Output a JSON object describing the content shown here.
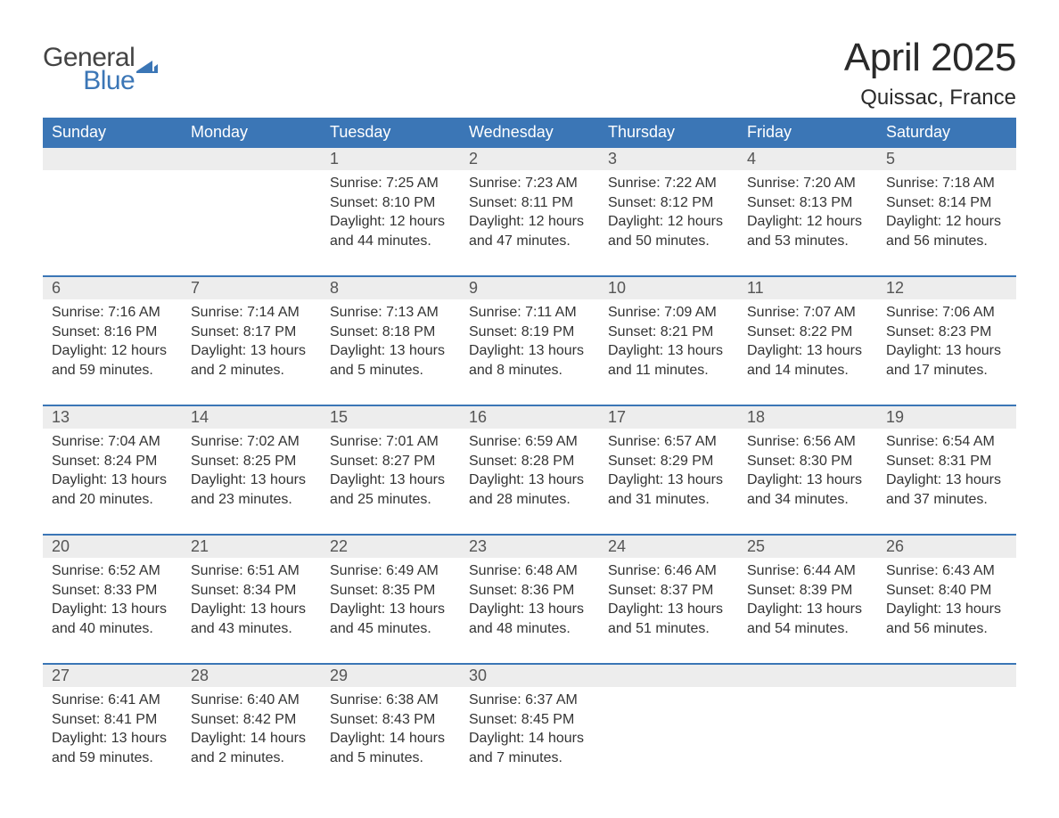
{
  "logo": {
    "general": "General",
    "blue": "Blue",
    "flag_color": "#3b76b6"
  },
  "title": "April 2025",
  "location": "Quissac, France",
  "colors": {
    "header_bg": "#3b76b6",
    "header_text": "#ffffff",
    "daynum_bg": "#ededed",
    "daynum_text": "#555555",
    "body_text": "#333333",
    "week_border": "#3b76b6",
    "page_bg": "#ffffff"
  },
  "fonts": {
    "title_size_pt": 33,
    "location_size_pt": 18,
    "header_size_pt": 14,
    "daynum_size_pt": 14,
    "body_size_pt": 12
  },
  "day_labels": [
    "Sunday",
    "Monday",
    "Tuesday",
    "Wednesday",
    "Thursday",
    "Friday",
    "Saturday"
  ],
  "weeks": [
    {
      "days": [
        {
          "num": "",
          "sunrise": "",
          "sunset": "",
          "daylight": ""
        },
        {
          "num": "",
          "sunrise": "",
          "sunset": "",
          "daylight": ""
        },
        {
          "num": "1",
          "sunrise": "Sunrise: 7:25 AM",
          "sunset": "Sunset: 8:10 PM",
          "daylight": "Daylight: 12 hours and 44 minutes."
        },
        {
          "num": "2",
          "sunrise": "Sunrise: 7:23 AM",
          "sunset": "Sunset: 8:11 PM",
          "daylight": "Daylight: 12 hours and 47 minutes."
        },
        {
          "num": "3",
          "sunrise": "Sunrise: 7:22 AM",
          "sunset": "Sunset: 8:12 PM",
          "daylight": "Daylight: 12 hours and 50 minutes."
        },
        {
          "num": "4",
          "sunrise": "Sunrise: 7:20 AM",
          "sunset": "Sunset: 8:13 PM",
          "daylight": "Daylight: 12 hours and 53 minutes."
        },
        {
          "num": "5",
          "sunrise": "Sunrise: 7:18 AM",
          "sunset": "Sunset: 8:14 PM",
          "daylight": "Daylight: 12 hours and 56 minutes."
        }
      ]
    },
    {
      "days": [
        {
          "num": "6",
          "sunrise": "Sunrise: 7:16 AM",
          "sunset": "Sunset: 8:16 PM",
          "daylight": "Daylight: 12 hours and 59 minutes."
        },
        {
          "num": "7",
          "sunrise": "Sunrise: 7:14 AM",
          "sunset": "Sunset: 8:17 PM",
          "daylight": "Daylight: 13 hours and 2 minutes."
        },
        {
          "num": "8",
          "sunrise": "Sunrise: 7:13 AM",
          "sunset": "Sunset: 8:18 PM",
          "daylight": "Daylight: 13 hours and 5 minutes."
        },
        {
          "num": "9",
          "sunrise": "Sunrise: 7:11 AM",
          "sunset": "Sunset: 8:19 PM",
          "daylight": "Daylight: 13 hours and 8 minutes."
        },
        {
          "num": "10",
          "sunrise": "Sunrise: 7:09 AM",
          "sunset": "Sunset: 8:21 PM",
          "daylight": "Daylight: 13 hours and 11 minutes."
        },
        {
          "num": "11",
          "sunrise": "Sunrise: 7:07 AM",
          "sunset": "Sunset: 8:22 PM",
          "daylight": "Daylight: 13 hours and 14 minutes."
        },
        {
          "num": "12",
          "sunrise": "Sunrise: 7:06 AM",
          "sunset": "Sunset: 8:23 PM",
          "daylight": "Daylight: 13 hours and 17 minutes."
        }
      ]
    },
    {
      "days": [
        {
          "num": "13",
          "sunrise": "Sunrise: 7:04 AM",
          "sunset": "Sunset: 8:24 PM",
          "daylight": "Daylight: 13 hours and 20 minutes."
        },
        {
          "num": "14",
          "sunrise": "Sunrise: 7:02 AM",
          "sunset": "Sunset: 8:25 PM",
          "daylight": "Daylight: 13 hours and 23 minutes."
        },
        {
          "num": "15",
          "sunrise": "Sunrise: 7:01 AM",
          "sunset": "Sunset: 8:27 PM",
          "daylight": "Daylight: 13 hours and 25 minutes."
        },
        {
          "num": "16",
          "sunrise": "Sunrise: 6:59 AM",
          "sunset": "Sunset: 8:28 PM",
          "daylight": "Daylight: 13 hours and 28 minutes."
        },
        {
          "num": "17",
          "sunrise": "Sunrise: 6:57 AM",
          "sunset": "Sunset: 8:29 PM",
          "daylight": "Daylight: 13 hours and 31 minutes."
        },
        {
          "num": "18",
          "sunrise": "Sunrise: 6:56 AM",
          "sunset": "Sunset: 8:30 PM",
          "daylight": "Daylight: 13 hours and 34 minutes."
        },
        {
          "num": "19",
          "sunrise": "Sunrise: 6:54 AM",
          "sunset": "Sunset: 8:31 PM",
          "daylight": "Daylight: 13 hours and 37 minutes."
        }
      ]
    },
    {
      "days": [
        {
          "num": "20",
          "sunrise": "Sunrise: 6:52 AM",
          "sunset": "Sunset: 8:33 PM",
          "daylight": "Daylight: 13 hours and 40 minutes."
        },
        {
          "num": "21",
          "sunrise": "Sunrise: 6:51 AM",
          "sunset": "Sunset: 8:34 PM",
          "daylight": "Daylight: 13 hours and 43 minutes."
        },
        {
          "num": "22",
          "sunrise": "Sunrise: 6:49 AM",
          "sunset": "Sunset: 8:35 PM",
          "daylight": "Daylight: 13 hours and 45 minutes."
        },
        {
          "num": "23",
          "sunrise": "Sunrise: 6:48 AM",
          "sunset": "Sunset: 8:36 PM",
          "daylight": "Daylight: 13 hours and 48 minutes."
        },
        {
          "num": "24",
          "sunrise": "Sunrise: 6:46 AM",
          "sunset": "Sunset: 8:37 PM",
          "daylight": "Daylight: 13 hours and 51 minutes."
        },
        {
          "num": "25",
          "sunrise": "Sunrise: 6:44 AM",
          "sunset": "Sunset: 8:39 PM",
          "daylight": "Daylight: 13 hours and 54 minutes."
        },
        {
          "num": "26",
          "sunrise": "Sunrise: 6:43 AM",
          "sunset": "Sunset: 8:40 PM",
          "daylight": "Daylight: 13 hours and 56 minutes."
        }
      ]
    },
    {
      "days": [
        {
          "num": "27",
          "sunrise": "Sunrise: 6:41 AM",
          "sunset": "Sunset: 8:41 PM",
          "daylight": "Daylight: 13 hours and 59 minutes."
        },
        {
          "num": "28",
          "sunrise": "Sunrise: 6:40 AM",
          "sunset": "Sunset: 8:42 PM",
          "daylight": "Daylight: 14 hours and 2 minutes."
        },
        {
          "num": "29",
          "sunrise": "Sunrise: 6:38 AM",
          "sunset": "Sunset: 8:43 PM",
          "daylight": "Daylight: 14 hours and 5 minutes."
        },
        {
          "num": "30",
          "sunrise": "Sunrise: 6:37 AM",
          "sunset": "Sunset: 8:45 PM",
          "daylight": "Daylight: 14 hours and 7 minutes."
        },
        {
          "num": "",
          "sunrise": "",
          "sunset": "",
          "daylight": ""
        },
        {
          "num": "",
          "sunrise": "",
          "sunset": "",
          "daylight": ""
        },
        {
          "num": "",
          "sunrise": "",
          "sunset": "",
          "daylight": ""
        }
      ]
    }
  ]
}
